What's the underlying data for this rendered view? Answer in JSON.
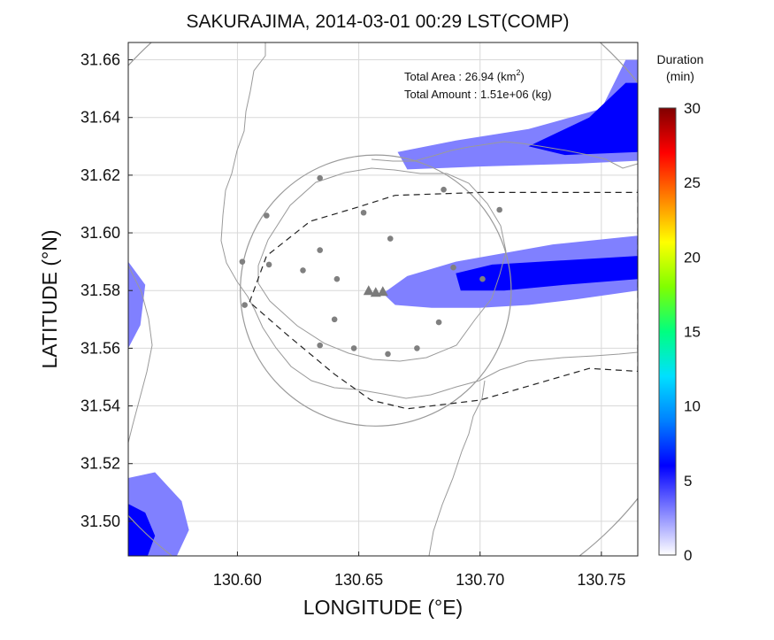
{
  "chart_data": {
    "type": "heatmap",
    "title": "SAKURAJIMA, 2014-03-01 00:29 LST(COMP)",
    "xlabel": "LONGITUDE (°E)",
    "ylabel": "LATITUDE (°N)",
    "xlim": [
      130.555,
      130.765
    ],
    "ylim": [
      31.488,
      31.666
    ],
    "x_ticks": [
      "130.60",
      "130.65",
      "130.70",
      "130.75"
    ],
    "y_ticks": [
      "31.50",
      "31.52",
      "31.54",
      "31.56",
      "31.58",
      "31.60",
      "31.62",
      "31.64",
      "31.66"
    ],
    "grid": true,
    "annotations": {
      "area_label": "Total Area   : 26.94 (km",
      "area_sup": "2",
      "area_close": ")",
      "amount_label": "Total Amount : 1.51e+06 (kg)"
    },
    "colorbar": {
      "title_line1": "Duration",
      "title_line2": "(min)",
      "ticks": [
        "0",
        "5",
        "10",
        "15",
        "20",
        "25",
        "30"
      ],
      "range": [
        0,
        30
      ],
      "colors": [
        "#ffffff",
        "#8080ff",
        "#0000ff",
        "#0080ff",
        "#00e0ff",
        "#00ff80",
        "#80ff00",
        "#ffff00",
        "#ff8000",
        "#ff0000",
        "#800000"
      ]
    },
    "vent": {
      "lon": 130.657,
      "lat": 31.58
    },
    "range_circles_km": [
      {
        "radius_deg_lat": 0.047
      },
      {
        "radius_deg_lat": 0.116
      }
    ],
    "stations": [
      {
        "lon": 130.634,
        "lat": 31.619
      },
      {
        "lon": 130.612,
        "lat": 31.606
      },
      {
        "lon": 130.652,
        "lat": 31.607
      },
      {
        "lon": 130.663,
        "lat": 31.598
      },
      {
        "lon": 130.685,
        "lat": 31.615
      },
      {
        "lon": 130.708,
        "lat": 31.608
      },
      {
        "lon": 130.602,
        "lat": 31.59
      },
      {
        "lon": 130.613,
        "lat": 31.589
      },
      {
        "lon": 130.627,
        "lat": 31.587
      },
      {
        "lon": 130.634,
        "lat": 31.594
      },
      {
        "lon": 130.641,
        "lat": 31.584
      },
      {
        "lon": 130.603,
        "lat": 31.575
      },
      {
        "lon": 130.64,
        "lat": 31.57
      },
      {
        "lon": 130.634,
        "lat": 31.561
      },
      {
        "lon": 130.648,
        "lat": 31.56
      },
      {
        "lon": 130.662,
        "lat": 31.558
      },
      {
        "lon": 130.674,
        "lat": 31.56
      },
      {
        "lon": 130.683,
        "lat": 31.569
      },
      {
        "lon": 130.701,
        "lat": 31.584
      },
      {
        "lon": 130.689,
        "lat": 31.588
      }
    ],
    "ash_plumes": [
      {
        "name": "main_plume",
        "points": [
          [
            130.66,
            31.579
          ],
          [
            130.67,
            31.585
          ],
          [
            130.69,
            31.59
          ],
          [
            130.71,
            31.593
          ],
          [
            130.73,
            31.596
          ],
          [
            130.765,
            31.599
          ],
          [
            130.765,
            31.58
          ],
          [
            130.74,
            31.577
          ],
          [
            130.72,
            31.575
          ],
          [
            130.7,
            31.574
          ],
          [
            130.68,
            31.574
          ],
          [
            130.665,
            31.575
          ]
        ],
        "duration_min": 3
      },
      {
        "name": "main_plume_core",
        "points": [
          [
            130.69,
            31.586
          ],
          [
            130.705,
            31.589
          ],
          [
            130.725,
            31.59
          ],
          [
            130.765,
            31.592
          ],
          [
            130.765,
            31.584
          ],
          [
            130.735,
            31.582
          ],
          [
            130.71,
            31.58
          ],
          [
            130.692,
            31.58
          ]
        ],
        "duration_min": 7
      },
      {
        "name": "north_band",
        "points": [
          [
            130.666,
            31.628
          ],
          [
            130.69,
            31.632
          ],
          [
            130.72,
            31.636
          ],
          [
            130.75,
            31.643
          ],
          [
            130.76,
            31.66
          ],
          [
            130.765,
            31.66
          ],
          [
            130.765,
            31.625
          ],
          [
            130.74,
            31.624
          ],
          [
            130.7,
            31.623
          ],
          [
            130.67,
            31.622
          ]
        ],
        "duration_min": 2
      },
      {
        "name": "north_band_core",
        "points": [
          [
            130.72,
            31.63
          ],
          [
            130.745,
            31.64
          ],
          [
            130.76,
            31.652
          ],
          [
            130.765,
            31.652
          ],
          [
            130.765,
            31.628
          ],
          [
            130.735,
            31.627
          ]
        ],
        "duration_min": 5
      },
      {
        "name": "southwest_patch",
        "points": [
          [
            130.555,
            31.488
          ],
          [
            130.555,
            31.515
          ],
          [
            130.566,
            31.517
          ],
          [
            130.577,
            31.507
          ],
          [
            130.58,
            31.497
          ],
          [
            130.575,
            31.488
          ]
        ],
        "duration_min": 2
      },
      {
        "name": "southwest_core",
        "points": [
          [
            130.555,
            31.488
          ],
          [
            130.555,
            31.506
          ],
          [
            130.562,
            31.503
          ],
          [
            130.566,
            31.495
          ],
          [
            130.563,
            31.488
          ]
        ],
        "duration_min": 5
      },
      {
        "name": "west_patch",
        "points": [
          [
            130.555,
            31.574
          ],
          [
            130.555,
            31.59
          ],
          [
            130.562,
            31.582
          ],
          [
            130.56,
            31.568
          ],
          [
            130.555,
            31.56
          ]
        ],
        "duration_min": 2
      }
    ],
    "deposit_outline": [
      [
        130.605,
        31.576
      ],
      [
        130.612,
        31.592
      ],
      [
        130.63,
        31.604
      ],
      [
        130.65,
        31.609
      ],
      [
        130.665,
        31.613
      ],
      [
        130.7,
        31.614
      ],
      [
        130.765,
        31.614
      ],
      [
        130.765,
        31.615
      ],
      [
        130.765,
        31.552
      ],
      [
        130.745,
        31.553
      ],
      [
        130.7,
        31.542
      ],
      [
        130.67,
        31.539
      ],
      [
        130.655,
        31.542
      ],
      [
        130.64,
        31.551
      ],
      [
        130.62,
        31.565
      ]
    ]
  }
}
